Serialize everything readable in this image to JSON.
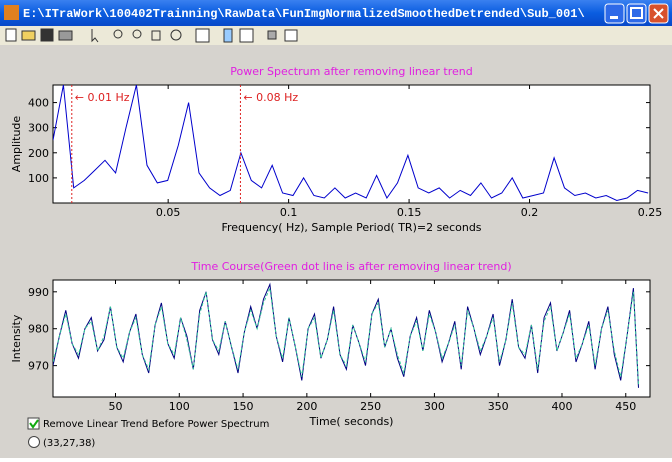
{
  "window": {
    "title": "E:\\ITraWork\\100402Trainning\\RawData\\FunImgNormalizedSmoothedDetrended\\Sub_001\\"
  },
  "charts": [
    {
      "type": "line",
      "title": "Power Spectrum after removing linear trend",
      "xlabel": "Frequency( Hz), Sample Period( TR)=2 seconds",
      "ylabel": "Amplitude",
      "x": [
        0.0022,
        0.0065,
        0.0108,
        0.0152,
        0.0195,
        0.0238,
        0.0282,
        0.0325,
        0.0368,
        0.0412,
        0.0455,
        0.0498,
        0.0542,
        0.0585,
        0.0628,
        0.0672,
        0.0715,
        0.0758,
        0.0802,
        0.0845,
        0.0888,
        0.0932,
        0.0975,
        0.1018,
        0.1062,
        0.1105,
        0.1148,
        0.1192,
        0.1235,
        0.1278,
        0.1322,
        0.1365,
        0.1408,
        0.1452,
        0.1495,
        0.1538,
        0.1582,
        0.1625,
        0.1668,
        0.1712,
        0.1755,
        0.1798,
        0.1842,
        0.1885,
        0.1928,
        0.1972,
        0.2015,
        0.2058,
        0.2102,
        0.2145,
        0.2188,
        0.2232,
        0.2275,
        0.2318,
        0.2362,
        0.2405,
        0.2448,
        0.2492
      ],
      "series": [
        {
          "color": "#0000cc",
          "values": [
            250,
            470,
            60,
            90,
            130,
            170,
            120,
            300,
            470,
            150,
            80,
            90,
            230,
            400,
            120,
            60,
            30,
            50,
            200,
            90,
            60,
            150,
            40,
            30,
            100,
            30,
            20,
            60,
            20,
            40,
            20,
            110,
            20,
            80,
            190,
            60,
            40,
            60,
            20,
            50,
            30,
            80,
            20,
            40,
            100,
            20,
            30,
            40,
            180,
            60,
            30,
            40,
            20,
            30,
            10,
            20,
            50,
            40
          ]
        }
      ],
      "xlim": [
        0.0022,
        0.25
      ],
      "ylim": [
        0,
        470
      ],
      "xticks": [
        0.05,
        0.1,
        0.15,
        0.2,
        0.25
      ],
      "yticks": [
        100,
        200,
        300,
        400
      ],
      "annotations": [
        {
          "text": "← 0.01 Hz",
          "x": 0.01,
          "color": "#dd2222"
        },
        {
          "text": "← 0.08 Hz",
          "x": 0.08,
          "color": "#dd2222"
        }
      ]
    },
    {
      "type": "line",
      "title": "Time Course(Green dot line is after removing linear trend)",
      "xlabel": "Time( seconds)",
      "ylabel": "Intensity",
      "x": [
        1,
        6,
        11,
        16,
        21,
        26,
        31,
        36,
        41,
        46,
        51,
        56,
        61,
        66,
        71,
        76,
        81,
        86,
        91,
        96,
        101,
        106,
        111,
        116,
        121,
        126,
        131,
        136,
        141,
        146,
        151,
        156,
        161,
        166,
        171,
        176,
        181,
        186,
        191,
        196,
        201,
        206,
        211,
        216,
        221,
        226,
        231,
        236,
        241,
        246,
        251,
        256,
        261,
        266,
        271,
        276,
        281,
        286,
        291,
        296,
        301,
        306,
        311,
        316,
        321,
        326,
        331,
        336,
        341,
        346,
        351,
        356,
        361,
        366,
        371,
        376,
        381,
        386,
        391,
        396,
        401,
        406,
        411,
        416,
        421,
        426,
        431,
        436,
        441,
        446,
        451,
        456,
        460
      ],
      "series": [
        {
          "color": "#000080",
          "dash": false,
          "values": [
            970,
            978,
            985,
            976,
            972,
            980,
            983,
            974,
            977,
            986,
            975,
            971,
            979,
            984,
            973,
            968,
            981,
            987,
            976,
            972,
            983,
            978,
            969,
            985,
            990,
            977,
            973,
            982,
            975,
            968,
            979,
            986,
            980,
            988,
            992,
            978,
            971,
            983,
            975,
            966,
            980,
            984,
            972,
            977,
            986,
            973,
            969,
            981,
            976,
            970,
            984,
            988,
            975,
            980,
            972,
            967,
            978,
            983,
            974,
            985,
            979,
            971,
            976,
            982,
            969,
            986,
            980,
            973,
            978,
            984,
            970,
            977,
            988,
            975,
            972,
            981,
            968,
            983,
            987,
            974,
            979,
            985,
            971,
            976,
            982,
            969,
            980,
            986,
            973,
            966,
            978,
            991,
            964
          ]
        },
        {
          "color": "#33cc99",
          "dash": true,
          "values": [
            971,
            978,
            984,
            976,
            973,
            980,
            982,
            974,
            978,
            986,
            975,
            972,
            979,
            983,
            973,
            969,
            981,
            986,
            976,
            973,
            983,
            977,
            969,
            984,
            990,
            977,
            974,
            982,
            975,
            969,
            979,
            985,
            980,
            987,
            991,
            978,
            972,
            983,
            975,
            967,
            980,
            983,
            972,
            977,
            985,
            973,
            970,
            981,
            976,
            971,
            984,
            987,
            975,
            980,
            973,
            968,
            978,
            982,
            974,
            984,
            979,
            972,
            976,
            981,
            970,
            985,
            980,
            974,
            978,
            983,
            971,
            977,
            987,
            975,
            973,
            981,
            969,
            982,
            986,
            974,
            979,
            984,
            972,
            976,
            981,
            970,
            980,
            985,
            974,
            967,
            978,
            990,
            965
          ]
        }
      ],
      "xlim": [
        1,
        469
      ],
      "ylim": [
        961.5,
        993.2
      ],
      "xticks": [
        50,
        100,
        150,
        200,
        250,
        300,
        350,
        400,
        450
      ],
      "yticks": [
        970,
        980,
        990
      ]
    }
  ],
  "controls": {
    "checkbox": "Remove Linear Trend Before Power Spectrum",
    "radio": "(33,27,38)"
  }
}
